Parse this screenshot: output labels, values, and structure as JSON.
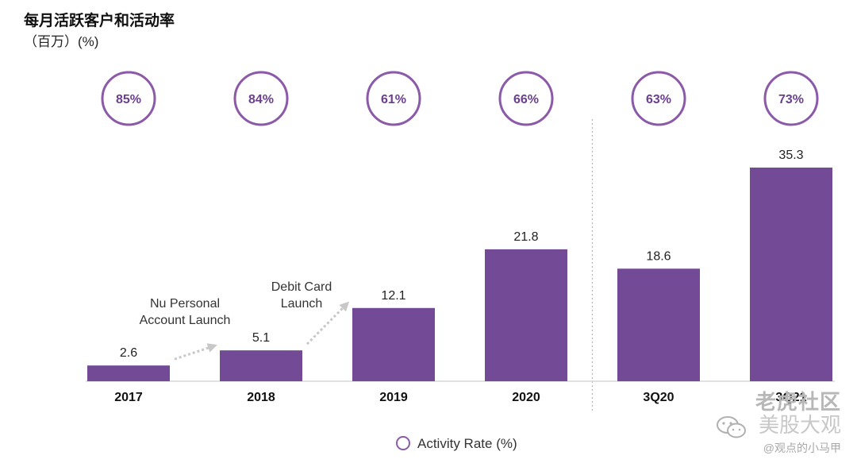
{
  "title": "每月活跃客户和活动率",
  "subtitle": "（百万）(%)",
  "chart_data": {
    "type": "bar",
    "categories": [
      "2017",
      "2018",
      "2019",
      "2020",
      "3Q20",
      "3Q21"
    ],
    "values": [
      2.6,
      5.1,
      12.1,
      21.8,
      18.6,
      35.3
    ],
    "value_labels": [
      "2.6",
      "5.1",
      "12.1",
      "21.8",
      "18.6",
      "35.3"
    ],
    "activity_rate": [
      "85%",
      "84%",
      "61%",
      "66%",
      "63%",
      "73%"
    ],
    "ylim": [
      0,
      40
    ],
    "grid": false,
    "annotations": [
      {
        "lines": [
          "Nu Personal",
          "Account Launch"
        ],
        "from": "2017",
        "to": "2018"
      },
      {
        "lines": [
          "Debit Card",
          "Launch"
        ],
        "from": "2018",
        "to": "2019"
      }
    ],
    "legend": {
      "label": "Activity Rate (%)",
      "position": "bottom-center"
    },
    "separator_after": "2020",
    "colors": {
      "bar": "#734a96",
      "circle": "#8b5aa8",
      "arrow": "#c8c8c8"
    }
  },
  "watermark": {
    "line1": "老虎社区",
    "line2": "美股大观",
    "line3": "@观点的小马甲"
  }
}
